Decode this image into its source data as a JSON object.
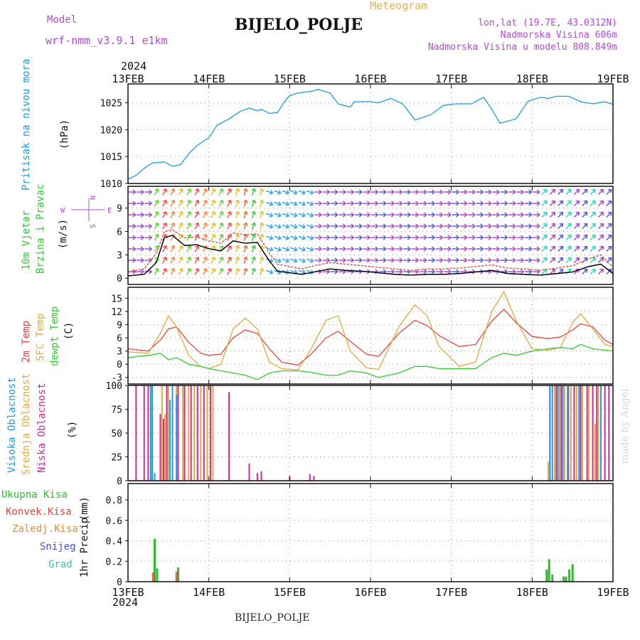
{
  "header": {
    "model_label": "Model",
    "model_value": "wrf-nmm_v3.9.1  e1km",
    "product": "Meteogram",
    "station": "BIJELO_POLJE",
    "lonlat": "lon,lat (19.7E, 43.0312N)",
    "elevation": "Nadmorska Visina 606m",
    "model_elevation": "Nadmorska Visina u modelu 808.849m",
    "footer_station": "BIJELO_POLJE",
    "watermark": "made by Angel"
  },
  "colors": {
    "pressure": "#1e9be8",
    "wind_speed": "#000000",
    "gust": "#e8453c",
    "temp2m": "#e8453c",
    "sfc_temp": "#e6a83a",
    "dewpt": "#2fcc2f",
    "cloud_high": "#1e9be8",
    "cloud_mid": "#e6a83a",
    "cloud_low": "#cc2c8c",
    "precip_total": "#2fbb2f",
    "precip_conv": "#e8453c",
    "precip_ice": "#f08a30",
    "precip_snow": "#4a4ae0",
    "precip_graupel": "#2ec4b0",
    "title_purple": "#b24ad8",
    "product_orange": "#e8b050"
  },
  "time_axis": {
    "year": "2024",
    "ticks": [
      "13FEB",
      "14FEB",
      "15FEB",
      "16FEB",
      "17FEB",
      "18FEB",
      "19FEB"
    ]
  },
  "chart_data": [
    {
      "type": "line",
      "name_key": "pressure",
      "ylabel": "Pritisak na nivou mora",
      "unit": "(hPa)",
      "yticks": [
        1010,
        1015,
        1020,
        1025
      ],
      "ylim": [
        1010,
        1028.5
      ],
      "grid": true,
      "x": [
        0,
        0.1,
        0.2,
        0.3,
        0.45,
        0.55,
        0.65,
        0.75,
        0.85,
        1.0,
        1.1,
        1.25,
        1.4,
        1.5,
        1.6,
        1.65,
        1.75,
        1.85,
        1.95,
        2.0,
        2.1,
        2.2,
        2.3,
        2.35,
        2.5,
        2.6,
        2.75,
        2.8,
        3.0,
        3.1,
        3.25,
        3.4,
        3.55,
        3.75,
        3.9,
        4.05,
        4.25,
        4.4,
        4.5,
        4.6,
        4.8,
        4.95,
        5.1,
        5.2,
        5.3,
        5.45,
        5.6,
        5.75,
        5.9,
        6.0
      ],
      "series": [
        {
          "name": "pressure",
          "values": [
            1010.8,
            1011.5,
            1012.8,
            1013.8,
            1014.0,
            1013.2,
            1013.5,
            1015.5,
            1017.0,
            1018.5,
            1020.8,
            1022.0,
            1023.5,
            1024.0,
            1023.5,
            1023.8,
            1023.0,
            1023.2,
            1025.5,
            1026.3,
            1026.8,
            1027.0,
            1027.2,
            1027.5,
            1026.8,
            1024.8,
            1024.2,
            1025.2,
            1025.2,
            1025.0,
            1025.8,
            1024.8,
            1021.8,
            1022.8,
            1024.5,
            1024.8,
            1024.8,
            1026.0,
            1023.8,
            1021.2,
            1022.0,
            1025.3,
            1026.0,
            1025.8,
            1026.2,
            1026.2,
            1025.2,
            1024.8,
            1025.2,
            1024.7
          ]
        }
      ]
    },
    {
      "type": "line",
      "name_key": "wind",
      "ylabel": "10m Vjetar",
      "ylabel2": "Brzina i Pravac",
      "unit": "(m/s)",
      "compass_top": "N",
      "compass_bottom": "S",
      "compass_left": "W",
      "compass_right": "E",
      "yticks": [
        0,
        3,
        6,
        9
      ],
      "ylim": [
        -0.8,
        11.8
      ],
      "grid": true,
      "x": [
        0,
        0.2,
        0.35,
        0.45,
        0.55,
        0.7,
        0.85,
        1.0,
        1.15,
        1.3,
        1.45,
        1.6,
        1.75,
        1.85,
        2.0,
        2.15,
        2.3,
        2.5,
        2.7,
        2.9,
        3.1,
        3.3,
        3.5,
        3.7,
        3.9,
        4.1,
        4.3,
        4.5,
        4.7,
        4.9,
        5.1,
        5.3,
        5.5,
        5.7,
        5.85,
        6.0
      ],
      "series": [
        {
          "name": "speed",
          "values": [
            0.3,
            0.5,
            2.0,
            5.2,
            5.5,
            4.2,
            4.3,
            3.8,
            3.5,
            4.8,
            4.5,
            4.6,
            2.2,
            0.9,
            0.7,
            0.5,
            0.8,
            1.2,
            1.0,
            0.9,
            0.7,
            0.5,
            0.4,
            0.5,
            0.5,
            0.6,
            0.8,
            1.0,
            0.6,
            0.5,
            0.4,
            0.6,
            0.8,
            1.5,
            1.8,
            0.6
          ]
        },
        {
          "name": "gust",
          "values": [
            0.8,
            1.2,
            3.2,
            6.0,
            6.2,
            5.2,
            5.3,
            4.8,
            4.5,
            5.8,
            5.6,
            5.7,
            3.2,
            1.8,
            1.5,
            1.2,
            1.6,
            2.0,
            1.8,
            1.6,
            1.4,
            1.2,
            1.0,
            1.2,
            1.2,
            1.3,
            1.5,
            1.7,
            1.3,
            1.2,
            1.0,
            1.3,
            1.6,
            2.5,
            3.0,
            1.4
          ]
        }
      ]
    },
    {
      "type": "line",
      "name_key": "temperature",
      "ylabel": "2m Temp",
      "ylabel2": "SFC Temp",
      "ylabel3": "dewpt Temp",
      "unit": "(C)",
      "yticks": [
        -3,
        0,
        3,
        6,
        9,
        12,
        15
      ],
      "ylim": [
        -4.5,
        17.5
      ],
      "grid": true,
      "x": [
        0,
        0.25,
        0.4,
        0.5,
        0.6,
        0.75,
        0.9,
        1.0,
        1.15,
        1.3,
        1.45,
        1.6,
        1.75,
        1.9,
        2.1,
        2.25,
        2.45,
        2.6,
        2.75,
        2.95,
        3.1,
        3.35,
        3.55,
        3.7,
        3.85,
        4.1,
        4.3,
        4.5,
        4.65,
        4.8,
        5.0,
        5.2,
        5.35,
        5.5,
        5.6,
        5.75,
        5.9,
        6.0
      ],
      "series": [
        {
          "name": "t2m",
          "values": [
            3.5,
            3.0,
            5.5,
            8.0,
            8.5,
            5.0,
            2.5,
            2.0,
            2.3,
            6.0,
            7.8,
            7.0,
            3.5,
            0.5,
            -0.2,
            2.0,
            6.0,
            7.5,
            5.2,
            2.3,
            1.8,
            7.0,
            10.0,
            8.8,
            6.5,
            4.0,
            4.5,
            9.8,
            12.5,
            9.5,
            6.3,
            5.8,
            6.2,
            7.8,
            9.2,
            8.5,
            5.5,
            4.5
          ]
        },
        {
          "name": "sfc",
          "values": [
            2.8,
            2.5,
            7.0,
            11.0,
            8.5,
            2.0,
            -0.5,
            -1.0,
            0.0,
            8.0,
            10.5,
            8.0,
            0.5,
            -1.0,
            -1.3,
            3.0,
            10.0,
            11.0,
            3.0,
            -0.8,
            -1.2,
            8.5,
            13.5,
            11.0,
            4.0,
            -0.5,
            0.5,
            12.0,
            16.5,
            10.0,
            3.5,
            3.2,
            3.8,
            9.5,
            11.5,
            8.0,
            4.5,
            4.0
          ]
        },
        {
          "name": "dewpt",
          "values": [
            1.5,
            2.0,
            2.5,
            1.0,
            1.5,
            0.0,
            -0.5,
            -1.0,
            -1.5,
            -2.0,
            -2.5,
            -3.5,
            -2.0,
            -1.5,
            -1.5,
            -1.8,
            -2.5,
            -2.5,
            -1.5,
            -2.0,
            -3.0,
            -2.0,
            -0.5,
            -0.5,
            -1.0,
            -1.0,
            -1.0,
            1.5,
            2.5,
            2.0,
            3.0,
            3.5,
            3.8,
            3.5,
            4.5,
            3.5,
            3.2,
            3.0
          ]
        }
      ]
    },
    {
      "type": "bar",
      "name_key": "clouds",
      "ylabel": "Visoka Oblacnost",
      "ylabel2": "Srednja Oblacnost",
      "ylabel3": "Niska Oblacnost",
      "unit": "(%)",
      "yticks": [
        0,
        25,
        50,
        75,
        100
      ],
      "ylim": [
        0,
        100
      ],
      "grid": true,
      "bars_high": [
        [
          0.28,
          100
        ],
        [
          0.3,
          100
        ],
        [
          0.33,
          8
        ],
        [
          0.52,
          85
        ],
        [
          0.55,
          100
        ],
        [
          0.6,
          90
        ],
        [
          5.22,
          100
        ],
        [
          5.25,
          100
        ],
        [
          5.32,
          100
        ],
        [
          5.38,
          100
        ],
        [
          5.45,
          100
        ],
        [
          5.58,
          100
        ],
        [
          5.85,
          100
        ]
      ],
      "bars_mid": [
        [
          0.3,
          40
        ],
        [
          0.42,
          100
        ],
        [
          0.46,
          70
        ],
        [
          0.5,
          100
        ],
        [
          0.55,
          100
        ],
        [
          0.6,
          100
        ],
        [
          0.68,
          100
        ],
        [
          0.75,
          100
        ],
        [
          0.82,
          100
        ],
        [
          0.9,
          100
        ],
        [
          0.98,
          100
        ],
        [
          1.05,
          100
        ],
        [
          5.2,
          20
        ],
        [
          5.28,
          100
        ],
        [
          5.34,
          100
        ],
        [
          5.4,
          100
        ],
        [
          5.48,
          100
        ],
        [
          5.55,
          100
        ],
        [
          5.62,
          100
        ],
        [
          5.7,
          100
        ],
        [
          5.78,
          60
        ],
        [
          5.82,
          100
        ]
      ],
      "bars_low": [
        [
          0.1,
          100
        ],
        [
          0.2,
          100
        ],
        [
          0.25,
          100
        ],
        [
          0.4,
          70
        ],
        [
          0.44,
          65
        ],
        [
          0.48,
          100
        ],
        [
          0.62,
          100
        ],
        [
          0.7,
          100
        ],
        [
          0.78,
          100
        ],
        [
          0.86,
          100
        ],
        [
          0.94,
          100
        ],
        [
          1.02,
          100
        ],
        [
          1.25,
          93
        ],
        [
          1.5,
          18
        ],
        [
          1.6,
          8
        ],
        [
          1.65,
          10
        ],
        [
          2.0,
          5
        ],
        [
          2.25,
          7
        ],
        [
          2.3,
          5
        ],
        [
          5.22,
          100
        ],
        [
          5.3,
          100
        ],
        [
          5.36,
          100
        ],
        [
          5.44,
          100
        ],
        [
          5.52,
          100
        ],
        [
          5.6,
          100
        ],
        [
          5.68,
          100
        ],
        [
          5.75,
          100
        ],
        [
          5.8,
          100
        ],
        [
          5.9,
          100
        ],
        [
          5.95,
          100
        ]
      ]
    },
    {
      "type": "bar",
      "name_key": "precip",
      "ylabel": "1hr Precip",
      "unit": "(mm)",
      "legend": [
        "Ukupna Kisa",
        "Konvek.Kisa",
        "Zaledj.Kisa",
        "Snijeg",
        "Grad"
      ],
      "yticks": [
        0,
        0.2,
        0.4,
        0.6,
        0.8
      ],
      "ylim": [
        0,
        0.96
      ],
      "grid": true,
      "bars_total": [
        [
          0.33,
          0.42
        ],
        [
          0.36,
          0.13
        ],
        [
          0.62,
          0.14
        ],
        [
          5.18,
          0.12
        ],
        [
          5.21,
          0.22
        ],
        [
          5.25,
          0.07
        ],
        [
          5.39,
          0.05
        ],
        [
          5.42,
          0.05
        ],
        [
          5.46,
          0.12
        ],
        [
          5.5,
          0.17
        ]
      ],
      "bars_conv": [
        [
          0.31,
          0.09
        ],
        [
          0.6,
          0.1
        ]
      ]
    }
  ]
}
